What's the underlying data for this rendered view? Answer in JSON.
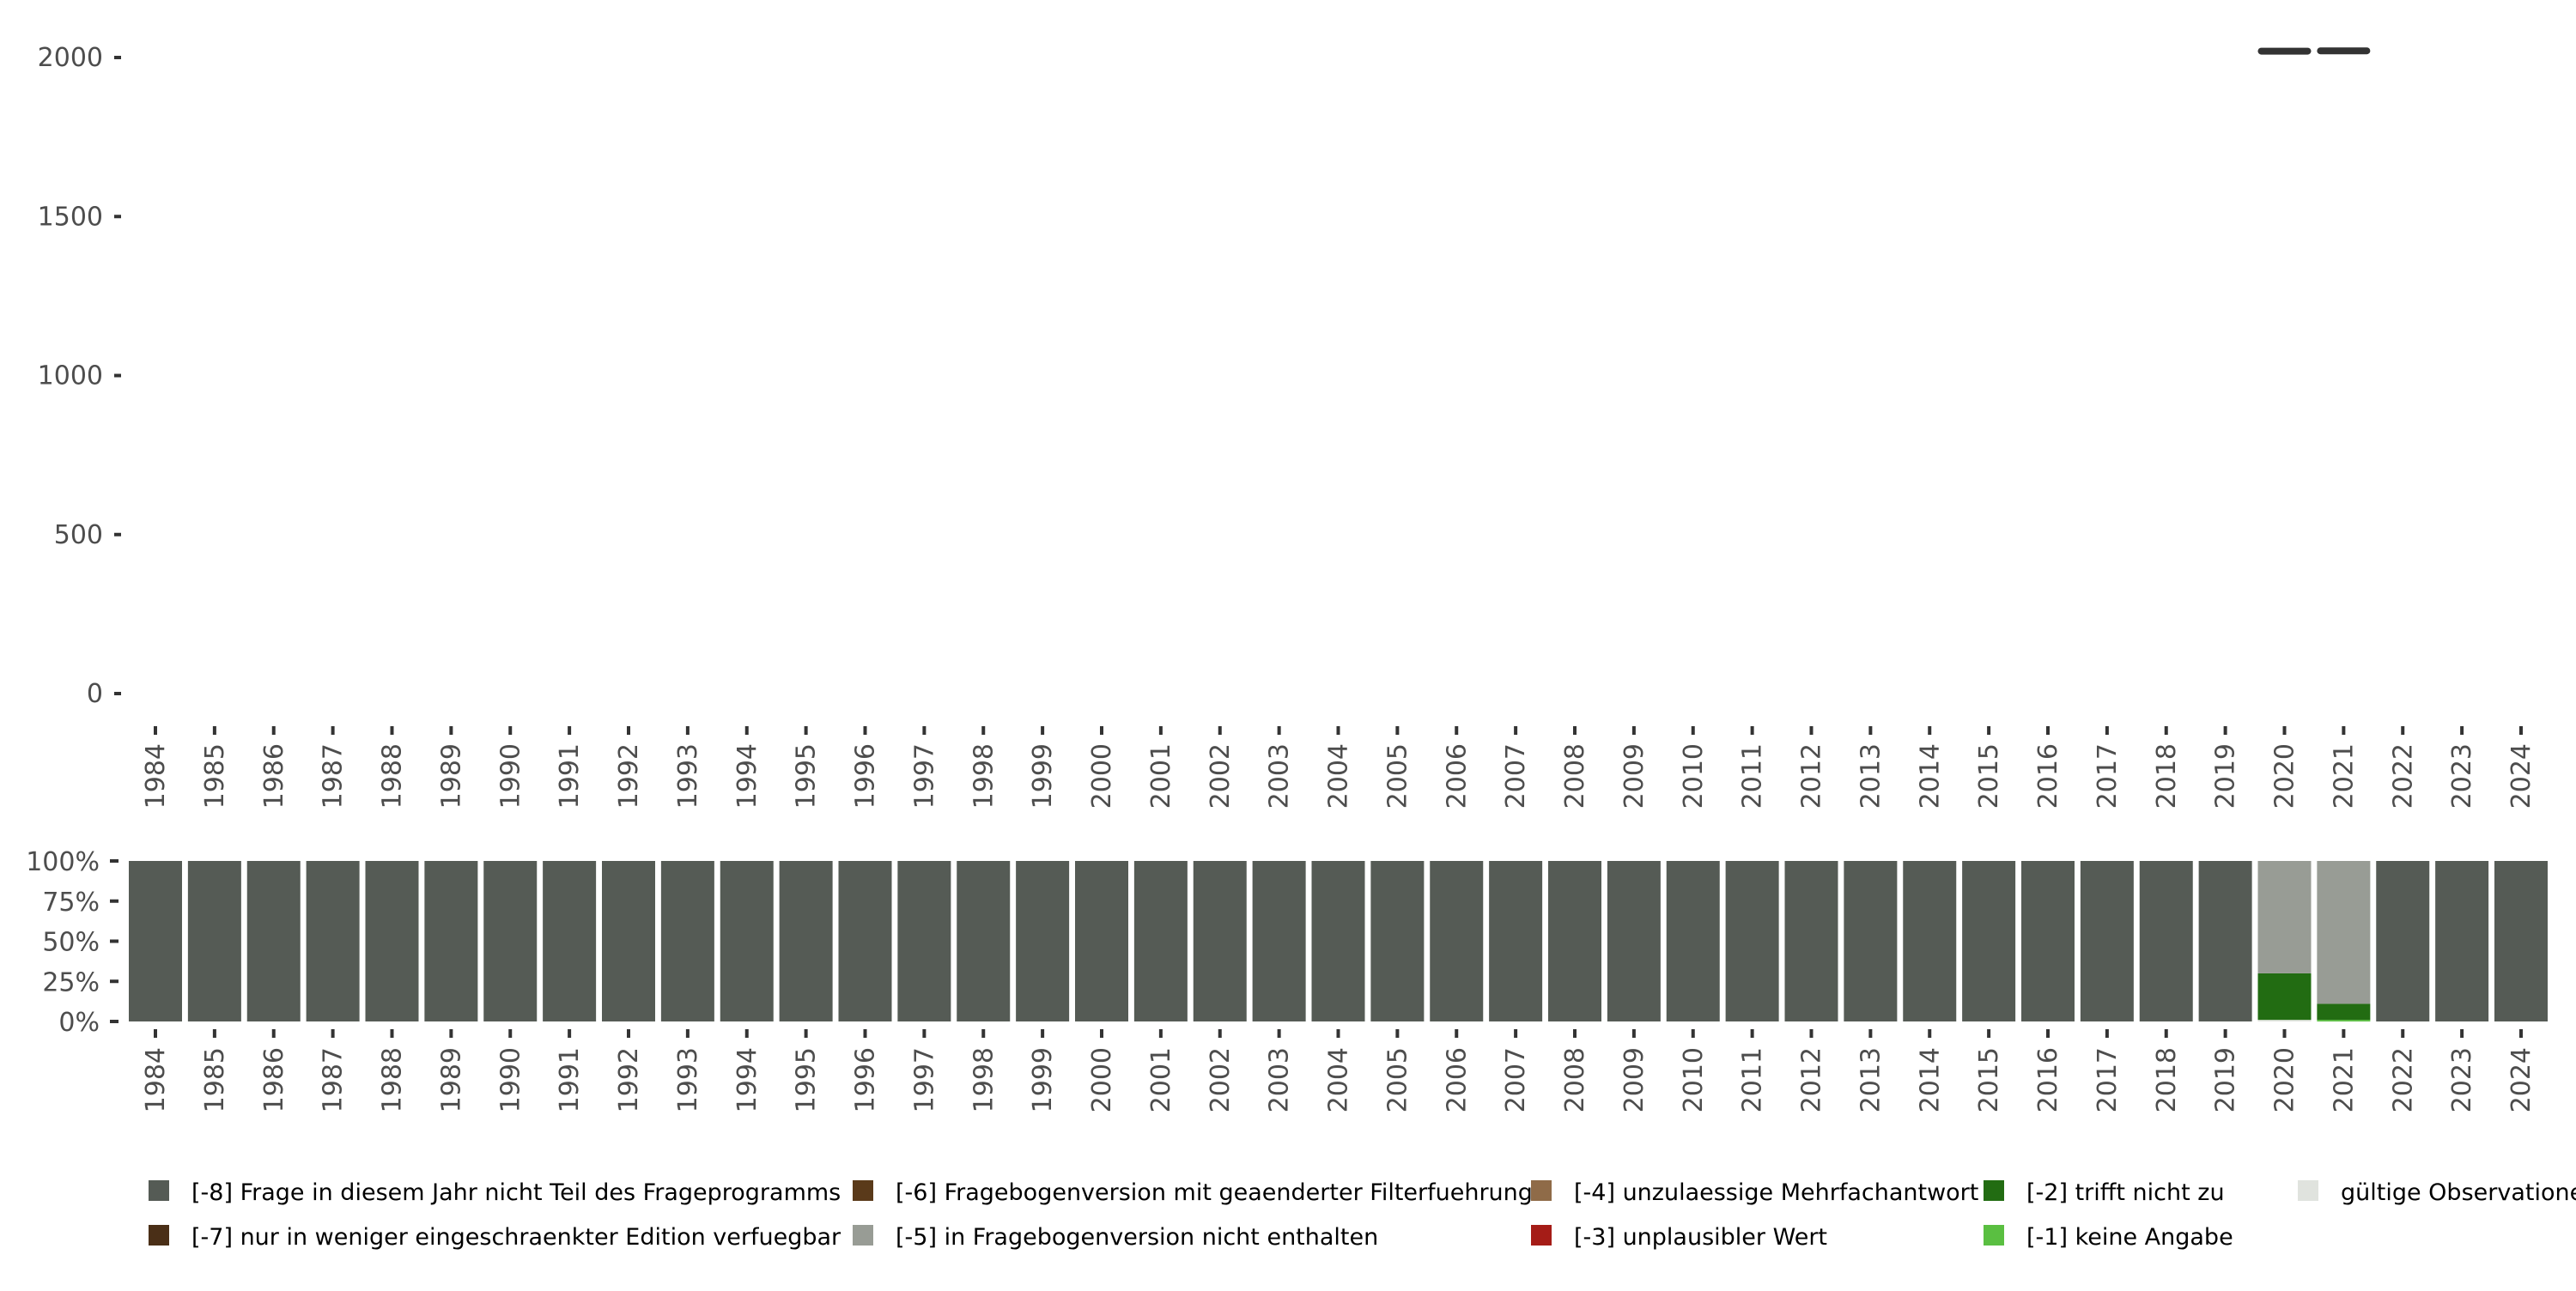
{
  "chart_data": [
    {
      "type": "line",
      "title": "",
      "xlabel": "",
      "ylabel": "",
      "ylim": [
        0,
        2000
      ],
      "yticks": [
        0,
        500,
        1000,
        1500,
        2000
      ],
      "ytick_labels": [
        "0",
        "500",
        "1000",
        "1500",
        "2000"
      ],
      "categories": [
        "1984",
        "1985",
        "1986",
        "1987",
        "1988",
        "1989",
        "1990",
        "1991",
        "1992",
        "1993",
        "1994",
        "1995",
        "1996",
        "1997",
        "1998",
        "1999",
        "2000",
        "2001",
        "2002",
        "2003",
        "2004",
        "2005",
        "2006",
        "2007",
        "2008",
        "2009",
        "2010",
        "2011",
        "2012",
        "2013",
        "2014",
        "2015",
        "2016",
        "2017",
        "2018",
        "2019",
        "2020",
        "2021",
        "2022",
        "2023",
        "2024"
      ],
      "segments": [
        {
          "year": "2020",
          "value": 2020
        },
        {
          "year": "2021",
          "value": 2021
        }
      ],
      "grid": false
    },
    {
      "type": "bar",
      "stacked": true,
      "title": "",
      "xlabel": "",
      "ylabel": "",
      "ylim": [
        0,
        100
      ],
      "yticks": [
        0,
        25,
        50,
        75,
        100
      ],
      "ytick_labels": [
        "0%",
        "25%",
        "50%",
        "75%",
        "100%"
      ],
      "categories": [
        "1984",
        "1985",
        "1986",
        "1987",
        "1988",
        "1989",
        "1990",
        "1991",
        "1992",
        "1993",
        "1994",
        "1995",
        "1996",
        "1997",
        "1998",
        "1999",
        "2000",
        "2001",
        "2002",
        "2003",
        "2004",
        "2005",
        "2006",
        "2007",
        "2008",
        "2009",
        "2010",
        "2011",
        "2012",
        "2013",
        "2014",
        "2015",
        "2016",
        "2017",
        "2018",
        "2019",
        "2020",
        "2021",
        "2022",
        "2023",
        "2024"
      ],
      "stack_order_bottom_to_top": [
        "valid",
        "m1",
        "m2",
        "m3",
        "m4",
        "m5",
        "m6",
        "m7",
        "m8"
      ],
      "series": [
        {
          "key": "m8",
          "name": "[-8] Frage in diesem Jahr nicht Teil des Frageprogramms",
          "color": "#555b55",
          "values": [
            100,
            100,
            100,
            100,
            100,
            100,
            100,
            100,
            100,
            100,
            100,
            100,
            100,
            100,
            100,
            100,
            100,
            100,
            100,
            100,
            100,
            100,
            100,
            100,
            100,
            100,
            100,
            100,
            100,
            100,
            100,
            100,
            100,
            100,
            100,
            100,
            0,
            0,
            100,
            100,
            100
          ]
        },
        {
          "key": "m7",
          "name": "[-7] nur in weniger eingeschraenkter Edition verfuegbar",
          "color": "#4a2f17",
          "values": [
            0,
            0,
            0,
            0,
            0,
            0,
            0,
            0,
            0,
            0,
            0,
            0,
            0,
            0,
            0,
            0,
            0,
            0,
            0,
            0,
            0,
            0,
            0,
            0,
            0,
            0,
            0,
            0,
            0,
            0,
            0,
            0,
            0,
            0,
            0,
            0,
            0,
            0,
            0,
            0,
            0
          ]
        },
        {
          "key": "m6",
          "name": "[-6] Fragebogenversion mit geaenderter Filterfuehrung",
          "color": "#5a3a1a",
          "values": [
            0,
            0,
            0,
            0,
            0,
            0,
            0,
            0,
            0,
            0,
            0,
            0,
            0,
            0,
            0,
            0,
            0,
            0,
            0,
            0,
            0,
            0,
            0,
            0,
            0,
            0,
            0,
            0,
            0,
            0,
            0,
            0,
            0,
            0,
            0,
            0,
            0,
            0,
            0,
            0,
            0
          ]
        },
        {
          "key": "m5",
          "name": "[-5] in Fragebogenversion nicht enthalten",
          "color": "#989c95",
          "values": [
            0,
            0,
            0,
            0,
            0,
            0,
            0,
            0,
            0,
            0,
            0,
            0,
            0,
            0,
            0,
            0,
            0,
            0,
            0,
            0,
            0,
            0,
            0,
            0,
            0,
            0,
            0,
            0,
            0,
            0,
            0,
            0,
            0,
            0,
            0,
            0,
            70,
            89,
            0,
            0,
            0
          ]
        },
        {
          "key": "m4",
          "name": "[-4] unzulaessige Mehrfachantwort",
          "color": "#8f6b48",
          "values": [
            0,
            0,
            0,
            0,
            0,
            0,
            0,
            0,
            0,
            0,
            0,
            0,
            0,
            0,
            0,
            0,
            0,
            0,
            0,
            0,
            0,
            0,
            0,
            0,
            0,
            0,
            0,
            0,
            0,
            0,
            0,
            0,
            0,
            0,
            0,
            0,
            0,
            0,
            0,
            0,
            0
          ]
        },
        {
          "key": "m3",
          "name": "[-3] unplausibler Wert",
          "color": "#a51c17",
          "values": [
            0,
            0,
            0,
            0,
            0,
            0,
            0,
            0,
            0,
            0,
            0,
            0,
            0,
            0,
            0,
            0,
            0,
            0,
            0,
            0,
            0,
            0,
            0,
            0,
            0,
            0,
            0,
            0,
            0,
            0,
            0,
            0,
            0,
            0,
            0,
            0,
            0,
            0,
            0,
            0,
            0
          ]
        },
        {
          "key": "m2",
          "name": "[-2] trifft nicht zu",
          "color": "#226c12",
          "values": [
            0,
            0,
            0,
            0,
            0,
            0,
            0,
            0,
            0,
            0,
            0,
            0,
            0,
            0,
            0,
            0,
            0,
            0,
            0,
            0,
            0,
            0,
            0,
            0,
            0,
            0,
            0,
            0,
            0,
            0,
            0,
            0,
            0,
            0,
            0,
            0,
            29,
            10,
            0,
            0,
            0
          ]
        },
        {
          "key": "m1",
          "name": "[-1] keine Angabe",
          "color": "#5abf41",
          "values": [
            0,
            0,
            0,
            0,
            0,
            0,
            0,
            0,
            0,
            0,
            0,
            0,
            0,
            0,
            0,
            0,
            0,
            0,
            0,
            0,
            0,
            0,
            0,
            0,
            0,
            0,
            0,
            0,
            0,
            0,
            0,
            0,
            0,
            0,
            0,
            0,
            0,
            1,
            0,
            0,
            0
          ]
        },
        {
          "key": "valid",
          "name": "gültige Observationen",
          "color": "#e0e3de",
          "values": [
            0,
            0,
            0,
            0,
            0,
            0,
            0,
            0,
            0,
            0,
            0,
            0,
            0,
            0,
            0,
            0,
            0,
            0,
            0,
            0,
            0,
            0,
            0,
            0,
            0,
            0,
            0,
            0,
            0,
            0,
            0,
            0,
            0,
            0,
            0,
            0,
            1,
            0,
            0,
            0,
            0
          ]
        }
      ],
      "legend_placement": "bottom",
      "legend_order": [
        "m8",
        "m7",
        "m6",
        "m5",
        "m4",
        "m3",
        "m2",
        "m1",
        "valid"
      ],
      "grid": false
    }
  ]
}
